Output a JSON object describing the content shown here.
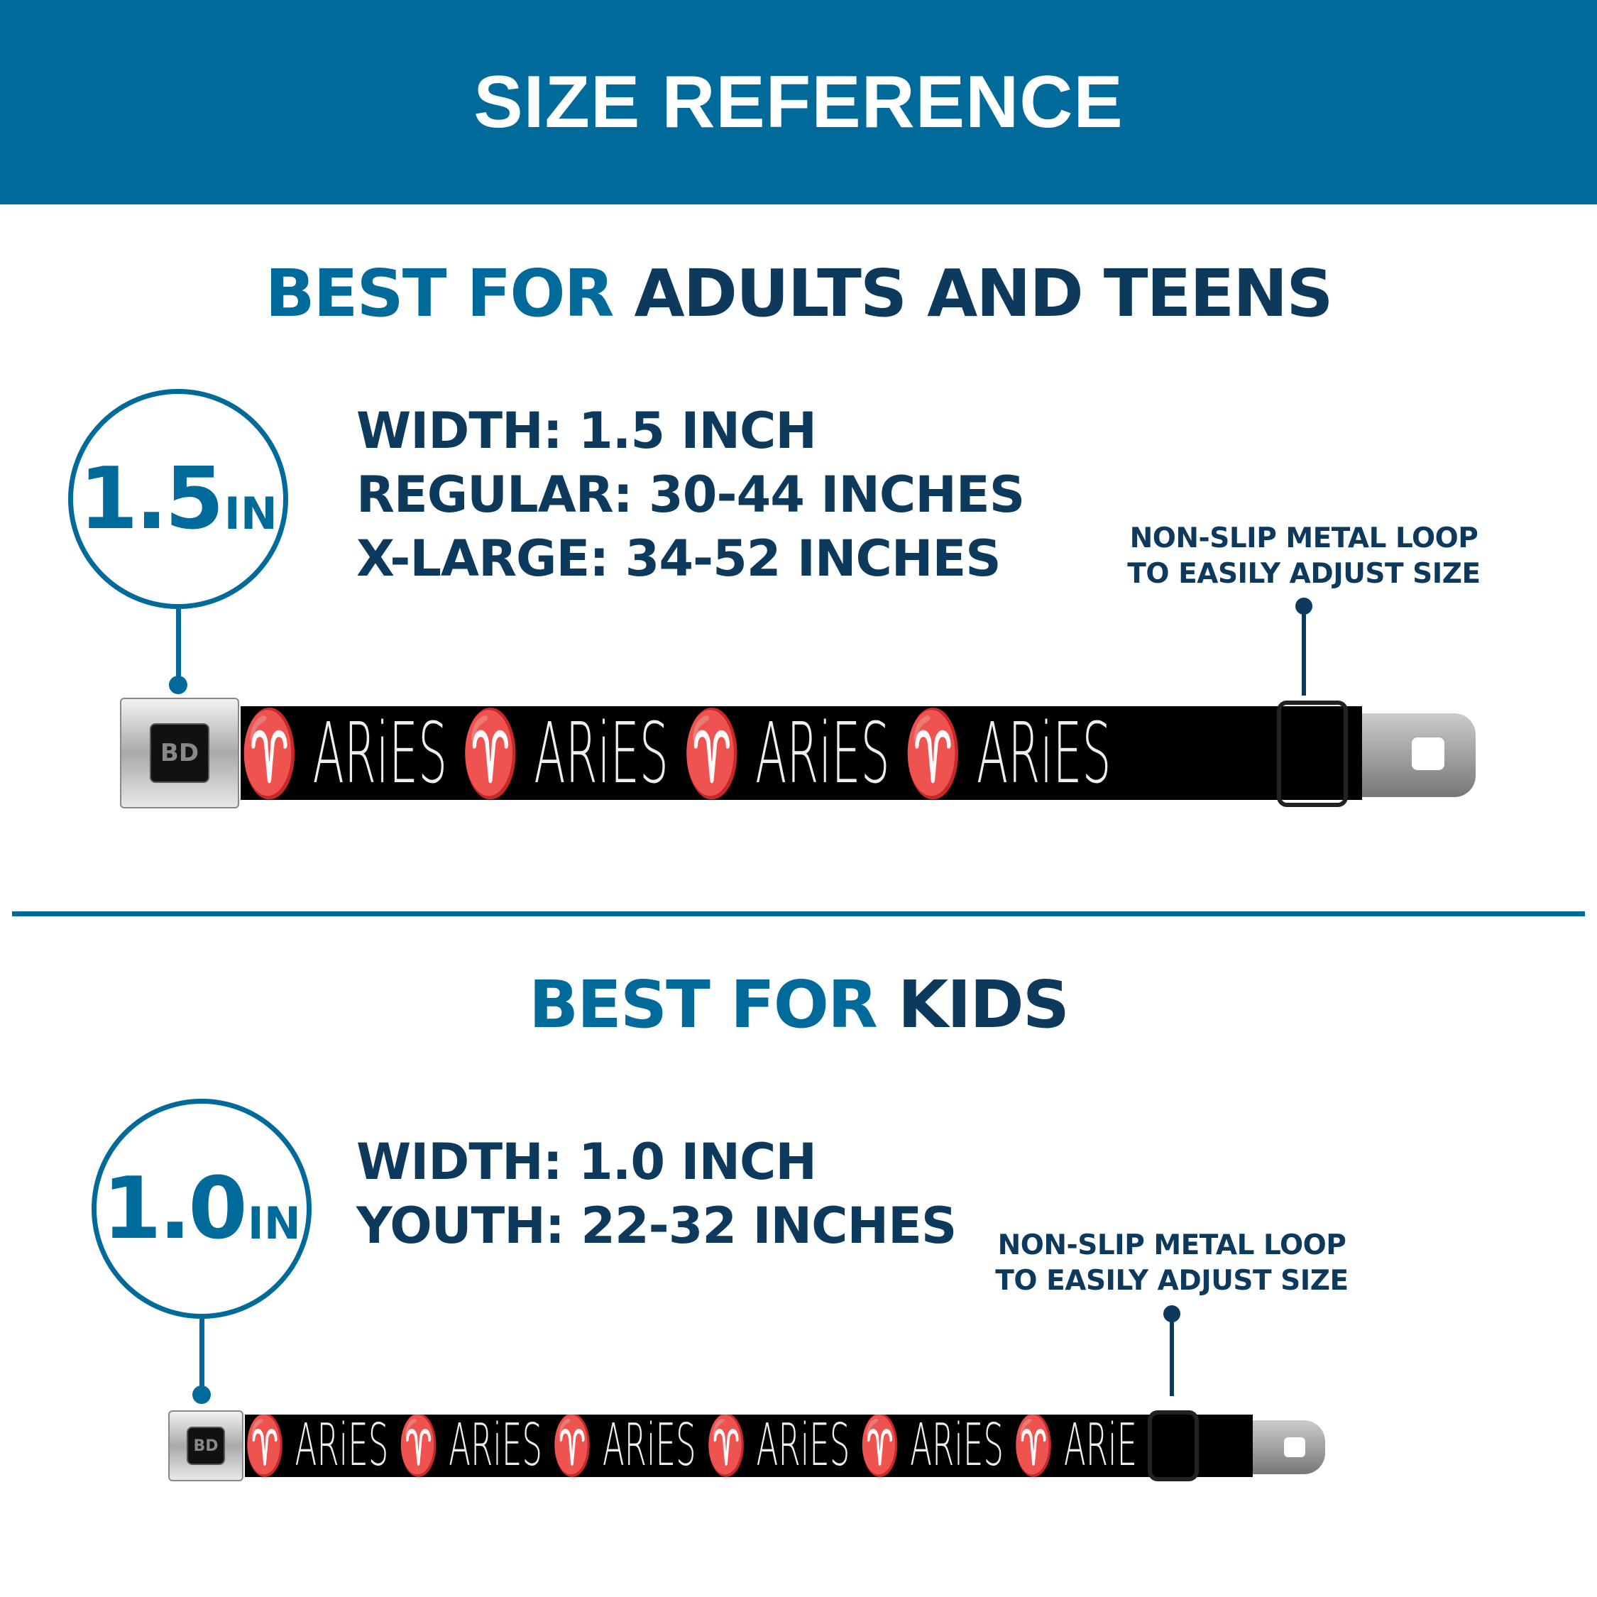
{
  "header": {
    "title": "SIZE REFERENCE"
  },
  "adult": {
    "title_accent": "BEST FOR ",
    "title_main": "ADULTS AND TEENS",
    "badge_value": "1.5",
    "badge_unit": "IN",
    "specs": [
      "WIDTH: 1.5 INCH",
      "REGULAR: 30-44 INCHES",
      "X-LARGE: 34-52 INCHES"
    ],
    "note": [
      "NON-SLIP METAL LOOP",
      "TO EASILY ADJUST SIZE"
    ],
    "strap_text": "♈ ARiES   ♈ ARiES   ♈ ARiES   ♈ ARiES",
    "logo": "BD"
  },
  "kids": {
    "title_accent": "BEST FOR ",
    "title_main": "KIDS",
    "badge_value": "1.0",
    "badge_unit": "IN",
    "specs": [
      "WIDTH: 1.0 INCH",
      "YOUTH: 22-32 INCHES"
    ],
    "note": [
      "NON-SLIP METAL LOOP",
      "TO EASILY ADJUST SIZE"
    ],
    "strap_text": "♈ ARiES  ♈ ARiES  ♈ ARiES  ♈ ARiES  ♈ ARiES  ♈ ARiE",
    "logo": "BD"
  },
  "colors": {
    "brand_blue": "#006a9a",
    "navy": "#0d3a5c",
    "strap": "#000000"
  }
}
